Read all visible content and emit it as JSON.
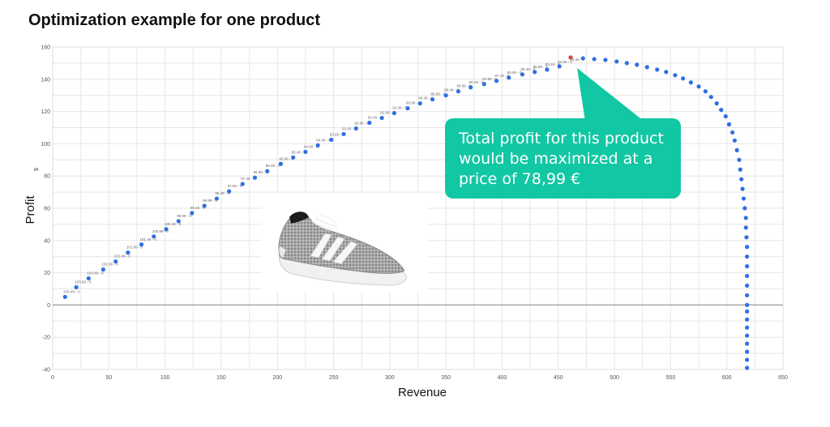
{
  "title": "Optimization example for one product",
  "callout": {
    "lines": [
      "Total profit for this product",
      "would be maximized at a",
      "price of 78,99 €"
    ]
  },
  "colors": {
    "point": "#2f6fe4",
    "optimum": "#e0442c",
    "callout": "#12c7a3",
    "grid": "#e6e6e6",
    "axis": "#9a9a9a"
  },
  "image": {
    "icon": "sneaker-product-image"
  },
  "chart_data": {
    "type": "scatter",
    "title": "",
    "xlabel": "Revenue",
    "ylabel": "Profit",
    "ylabel_unit": "$",
    "xlim": [
      0,
      650
    ],
    "ylim": [
      -40,
      160
    ],
    "xticks": [
      0,
      50,
      100,
      150,
      200,
      250,
      300,
      350,
      400,
      450,
      500,
      550,
      600,
      650
    ],
    "yticks": [
      -40,
      -20,
      0,
      20,
      40,
      60,
      80,
      100,
      120,
      140,
      160
    ],
    "grid": true,
    "optimum": {
      "x": 461,
      "y": 153.5,
      "price": "78,99 €"
    },
    "point_labels": [
      {
        "label": "104.49 - 0",
        "x": 11,
        "y": 5
      },
      {
        "label": "103.99 - 0",
        "x": 21,
        "y": 11
      },
      {
        "label": "103.49 - 0",
        "x": 32,
        "y": 16.5
      },
      {
        "label": "102.99 - 0",
        "x": 45,
        "y": 22
      },
      {
        "label": "102.49 - 0",
        "x": 56,
        "y": 27
      },
      {
        "label": "101.99 - 0",
        "x": 67,
        "y": 32.5
      },
      {
        "label": "101.49 - 0",
        "x": 79,
        "y": 37.5
      },
      {
        "label": "100.99 - 0",
        "x": 90,
        "y": 42.5
      },
      {
        "label": "100.49 - 0",
        "x": 101,
        "y": 47
      },
      {
        "label": "99.99 - 0",
        "x": 112,
        "y": 52
      },
      {
        "label": "99.49 - 0",
        "x": 124,
        "y": 57
      },
      {
        "label": "98.99 - 0",
        "x": 135,
        "y": 61.5
      },
      {
        "label": "98.49 - 0",
        "x": 146,
        "y": 66
      },
      {
        "label": "97.99 - 0",
        "x": 157,
        "y": 70.5
      },
      {
        "label": "97.49 - 0",
        "x": 169,
        "y": 75
      },
      {
        "label": "96.99 - 0",
        "x": 180,
        "y": 79
      },
      {
        "label": "96.49 - 0",
        "x": 191,
        "y": 83
      },
      {
        "label": "95.99 - 0",
        "x": 203,
        "y": 87.5
      },
      {
        "label": "95.49 - 0",
        "x": 214,
        "y": 91.5
      },
      {
        "label": "94.99 - 0",
        "x": 225,
        "y": 95
      },
      {
        "label": "94.49 - 0",
        "x": 236,
        "y": 99
      },
      {
        "label": "93.99 - 0",
        "x": 248,
        "y": 102.5
      },
      {
        "label": "93.49 - 0",
        "x": 259,
        "y": 106
      },
      {
        "label": "92.99 - 0",
        "x": 270,
        "y": 109.5
      },
      {
        "label": "92.49 - 0",
        "x": 282,
        "y": 113
      },
      {
        "label": "91.99 - 0",
        "x": 293,
        "y": 116
      },
      {
        "label": "91.49 - 0",
        "x": 304,
        "y": 119
      },
      {
        "label": "90.99 - 0",
        "x": 316,
        "y": 122
      },
      {
        "label": "90.49 - 0",
        "x": 327,
        "y": 125
      },
      {
        "label": "89.99 - 0",
        "x": 338,
        "y": 127.5
      },
      {
        "label": "89.49 - 0",
        "x": 350,
        "y": 130
      },
      {
        "label": "88.99 - 0",
        "x": 361,
        "y": 132.5
      },
      {
        "label": "88.49 - 0",
        "x": 372,
        "y": 135
      },
      {
        "label": "87.99 - 0",
        "x": 384,
        "y": 137
      },
      {
        "label": "87.49 - 0",
        "x": 395,
        "y": 139
      },
      {
        "label": "86.99 - 0",
        "x": 406,
        "y": 141
      },
      {
        "label": "86.49 - 0",
        "x": 418,
        "y": 143
      },
      {
        "label": "85.99 - 0",
        "x": 429,
        "y": 144.5
      },
      {
        "label": "85.49 - 0",
        "x": 440,
        "y": 146
      },
      {
        "label": "84.99 - 0",
        "x": 451,
        "y": 147.5
      },
      {
        "label": "84.49 - 0",
        "x": 462,
        "y": 149
      }
    ],
    "series": [
      {
        "points": [
          [
            11,
            5
          ],
          [
            21,
            11
          ],
          [
            32,
            16.5
          ],
          [
            45,
            22
          ],
          [
            56,
            27
          ],
          [
            67,
            32.5
          ],
          [
            79,
            37.5
          ],
          [
            90,
            42.5
          ],
          [
            101,
            47
          ],
          [
            112,
            52
          ],
          [
            124,
            57
          ],
          [
            135,
            61.5
          ],
          [
            146,
            66
          ],
          [
            157,
            70.5
          ],
          [
            169,
            75
          ],
          [
            180,
            79
          ],
          [
            191,
            83
          ],
          [
            203,
            87.5
          ],
          [
            214,
            91.5
          ],
          [
            225,
            95
          ],
          [
            236,
            99
          ],
          [
            248,
            102.5
          ],
          [
            259,
            106
          ],
          [
            270,
            109.5
          ],
          [
            282,
            113
          ],
          [
            293,
            116
          ],
          [
            304,
            119
          ],
          [
            316,
            122
          ],
          [
            327,
            125
          ],
          [
            338,
            127.5
          ],
          [
            350,
            130
          ],
          [
            361,
            132.5
          ],
          [
            372,
            135
          ],
          [
            384,
            137
          ],
          [
            395,
            139
          ],
          [
            406,
            141
          ],
          [
            418,
            143
          ],
          [
            429,
            144.5
          ],
          [
            440,
            146
          ],
          [
            451,
            148
          ],
          [
            461,
            153.5
          ],
          [
            472,
            153
          ],
          [
            482,
            152.5
          ],
          [
            492,
            152
          ],
          [
            502,
            151
          ],
          [
            511,
            150
          ],
          [
            520,
            149
          ],
          [
            529,
            147.5
          ],
          [
            538,
            146
          ],
          [
            546,
            144.5
          ],
          [
            554,
            142.5
          ],
          [
            561,
            140.5
          ],
          [
            568,
            138
          ],
          [
            575,
            135.5
          ],
          [
            581,
            132.5
          ],
          [
            586,
            129
          ],
          [
            591,
            125
          ],
          [
            595,
            121
          ],
          [
            599,
            117
          ],
          [
            602,
            112
          ],
          [
            605,
            107
          ],
          [
            607,
            102
          ],
          [
            609,
            96
          ],
          [
            611,
            90
          ],
          [
            612,
            84
          ],
          [
            613,
            78
          ],
          [
            614,
            72
          ],
          [
            615,
            66
          ],
          [
            616,
            60
          ],
          [
            617,
            54
          ],
          [
            617,
            48
          ],
          [
            617.5,
            42
          ],
          [
            618,
            36
          ],
          [
            618,
            30
          ],
          [
            618,
            24
          ],
          [
            618,
            18
          ],
          [
            618,
            12
          ],
          [
            618,
            6
          ],
          [
            618,
            0
          ],
          [
            618,
            -4
          ],
          [
            618,
            -9
          ],
          [
            618,
            -14
          ],
          [
            618,
            -19
          ],
          [
            618,
            -24
          ],
          [
            618,
            -29
          ],
          [
            618,
            -34
          ],
          [
            618,
            -39
          ]
        ]
      }
    ]
  }
}
